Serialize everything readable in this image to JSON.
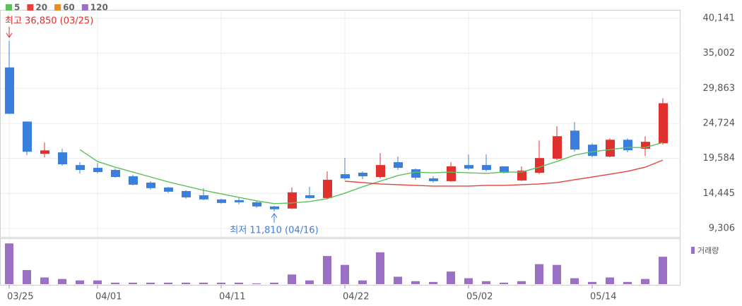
{
  "chart_data": {
    "type": "candlestick",
    "categories": [
      "03/25",
      null,
      null,
      null,
      null,
      "04/01",
      null,
      null,
      null,
      null,
      null,
      null,
      "04/11",
      null,
      null,
      null,
      null,
      null,
      null,
      "04/22",
      null,
      null,
      null,
      null,
      null,
      null,
      "05/02",
      null,
      null,
      null,
      null,
      null,
      null,
      "05/14",
      null,
      null,
      null,
      null
    ],
    "open": [
      32930,
      24990,
      20250,
      20470,
      18610,
      18200,
      17890,
      16960,
      16040,
      15320,
      14800,
      14180,
      13570,
      13460,
      13150,
      12540,
      12230,
      14180,
      13770,
      17270,
      17480,
      16860,
      19030,
      17990,
      16660,
      16250,
      18610,
      18610,
      18410,
      16350,
      17480,
      19540,
      23660,
      21600,
      19850,
      22320,
      21010,
      21810
    ],
    "high": [
      36850,
      24990,
      21910,
      20980,
      19030,
      18920,
      18100,
      17170,
      16250,
      15420,
      14910,
      15220,
      13670,
      13770,
      13360,
      12640,
      15320,
      15420,
      17690,
      19640,
      17690,
      20370,
      19850,
      18100,
      16970,
      19030,
      20160,
      20160,
      18410,
      18410,
      22220,
      24280,
      24900,
      21810,
      22530,
      22530,
      22840,
      28400
    ],
    "low": [
      26100,
      20050,
      19750,
      18510,
      17380,
      17380,
      16760,
      15630,
      15010,
      14490,
      13670,
      13460,
      12950,
      12850,
      12330,
      11810,
      12150,
      13670,
      13670,
      16450,
      16550,
      16660,
      17890,
      16450,
      16040,
      16140,
      17890,
      17690,
      17380,
      16250,
      17270,
      19330,
      20570,
      19750,
      19750,
      20470,
      19950,
      21600
    ],
    "close": [
      26130,
      20560,
      20760,
      18720,
      17890,
      17580,
      16860,
      15730,
      15220,
      14700,
      13870,
      13570,
      13050,
      13150,
      12540,
      12130,
      14600,
      13770,
      16450,
      16660,
      16970,
      18610,
      18200,
      16760,
      16250,
      18410,
      18100,
      17890,
      17480,
      17790,
      19640,
      22840,
      20880,
      19950,
      22320,
      20780,
      22020,
      27680
    ],
    "up_color": "#e0312e",
    "down_color": "#3a7fdc",
    "series": [
      {
        "name": "5",
        "color": "#5cc15c",
        "values": [
          null,
          null,
          null,
          null,
          20880,
          19130,
          18300,
          17580,
          16860,
          16140,
          15520,
          14900,
          14390,
          13870,
          13360,
          12950,
          13050,
          13260,
          13670,
          14490,
          15420,
          16250,
          17070,
          17580,
          17480,
          17580,
          17480,
          17380,
          17580,
          17580,
          18300,
          19130,
          20060,
          20570,
          20880,
          21190,
          21190,
          21910
        ]
      },
      {
        "name": "20",
        "color": "#e8413c",
        "values": [
          null,
          null,
          null,
          null,
          null,
          null,
          null,
          null,
          null,
          null,
          null,
          null,
          null,
          null,
          null,
          null,
          null,
          null,
          null,
          16250,
          16040,
          15830,
          15730,
          15630,
          15520,
          15520,
          15520,
          15630,
          15630,
          15730,
          15830,
          16040,
          16450,
          16860,
          17270,
          17690,
          18300,
          19330
        ]
      },
      {
        "name": "60",
        "color": "#f08a1c",
        "values": [
          null,
          null,
          null,
          null,
          null,
          null,
          null,
          null,
          null,
          null,
          null,
          null,
          null,
          null,
          null,
          null,
          null,
          null,
          null,
          null,
          null,
          null,
          null,
          null,
          null,
          null,
          null,
          null,
          null,
          null,
          null,
          null,
          null,
          null,
          null,
          null,
          null,
          null
        ]
      },
      {
        "name": "120",
        "color": "#9b6fc4",
        "values": [
          null,
          null,
          null,
          null,
          null,
          null,
          null,
          null,
          null,
          null,
          null,
          null,
          null,
          null,
          null,
          null,
          null,
          null,
          null,
          null,
          null,
          null,
          null,
          null,
          null,
          null,
          null,
          null,
          null,
          null,
          null,
          null,
          null,
          null,
          null,
          null,
          null,
          null
        ]
      }
    ],
    "annotations": [
      {
        "text": "최고 36,850 (03/25)",
        "value": 36850,
        "color": "#e0312e"
      },
      {
        "text": "최저 11,810 (04/16)",
        "value": 11810,
        "color": "#3a7fdc"
      }
    ],
    "ylim": [
      8070,
      41270
    ],
    "yticks": [
      {
        "value": 9306,
        "label": "9,306"
      },
      {
        "value": 14445,
        "label": "14,445"
      },
      {
        "value": 19584,
        "label": "19,584"
      },
      {
        "value": 24724,
        "label": "24,724"
      },
      {
        "value": 29863,
        "label": "29,863"
      },
      {
        "value": 35002,
        "label": "35,002"
      },
      {
        "value": 40141,
        "label": "40,141"
      }
    ],
    "grid": true,
    "volume": {
      "label": "거래량",
      "color": "#9b6fc4",
      "ylim": [
        0,
        60
      ],
      "values": [
        55,
        19,
        9,
        7,
        5,
        5,
        2,
        2,
        2,
        2,
        2,
        2,
        2,
        2,
        1,
        2,
        13,
        5,
        38,
        26,
        5,
        43,
        10,
        4,
        3,
        17,
        8,
        4,
        2,
        4,
        27,
        26,
        8,
        3,
        9,
        3,
        7,
        37
      ]
    }
  }
}
